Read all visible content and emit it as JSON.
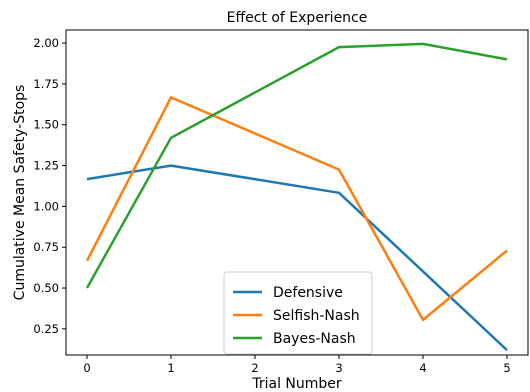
{
  "chart_data": {
    "type": "line",
    "title": "Effect of Experience",
    "xlabel": "Trial Number",
    "ylabel": "Cumulative Mean Safety-Stops",
    "x": [
      0,
      1,
      2,
      3,
      4,
      5
    ],
    "xlim": [
      -0.25,
      5.25
    ],
    "ylim": [
      0.09,
      2.08
    ],
    "xticks": [
      0,
      1,
      2,
      3,
      4,
      5
    ],
    "xtick_labels": [
      "0",
      "1",
      "2",
      "3",
      "4",
      "5"
    ],
    "yticks": [
      0.25,
      0.5,
      0.75,
      1.0,
      1.25,
      1.5,
      1.75,
      2.0
    ],
    "ytick_labels": [
      "0.25",
      "0.50",
      "0.75",
      "1.00",
      "1.25",
      "1.50",
      "1.75",
      "2.00"
    ],
    "grid": false,
    "legend_position": "bottom-center",
    "series": [
      {
        "name": "Defensive",
        "color": "#1f77b4",
        "x": [
          0,
          1,
          3,
          5
        ],
        "values": [
          1.167,
          1.25,
          1.083,
          0.12
        ]
      },
      {
        "name": "Selfish-Nash",
        "color": "#ff7f0e",
        "x": [
          0,
          1,
          3,
          4,
          5
        ],
        "values": [
          0.667,
          1.667,
          1.225,
          0.305,
          0.73
        ]
      },
      {
        "name": "Bayes-Nash",
        "color": "#2ca02c",
        "x": [
          0,
          1,
          3,
          4,
          5
        ],
        "values": [
          0.5,
          1.42,
          1.975,
          1.995,
          1.9
        ]
      }
    ]
  }
}
